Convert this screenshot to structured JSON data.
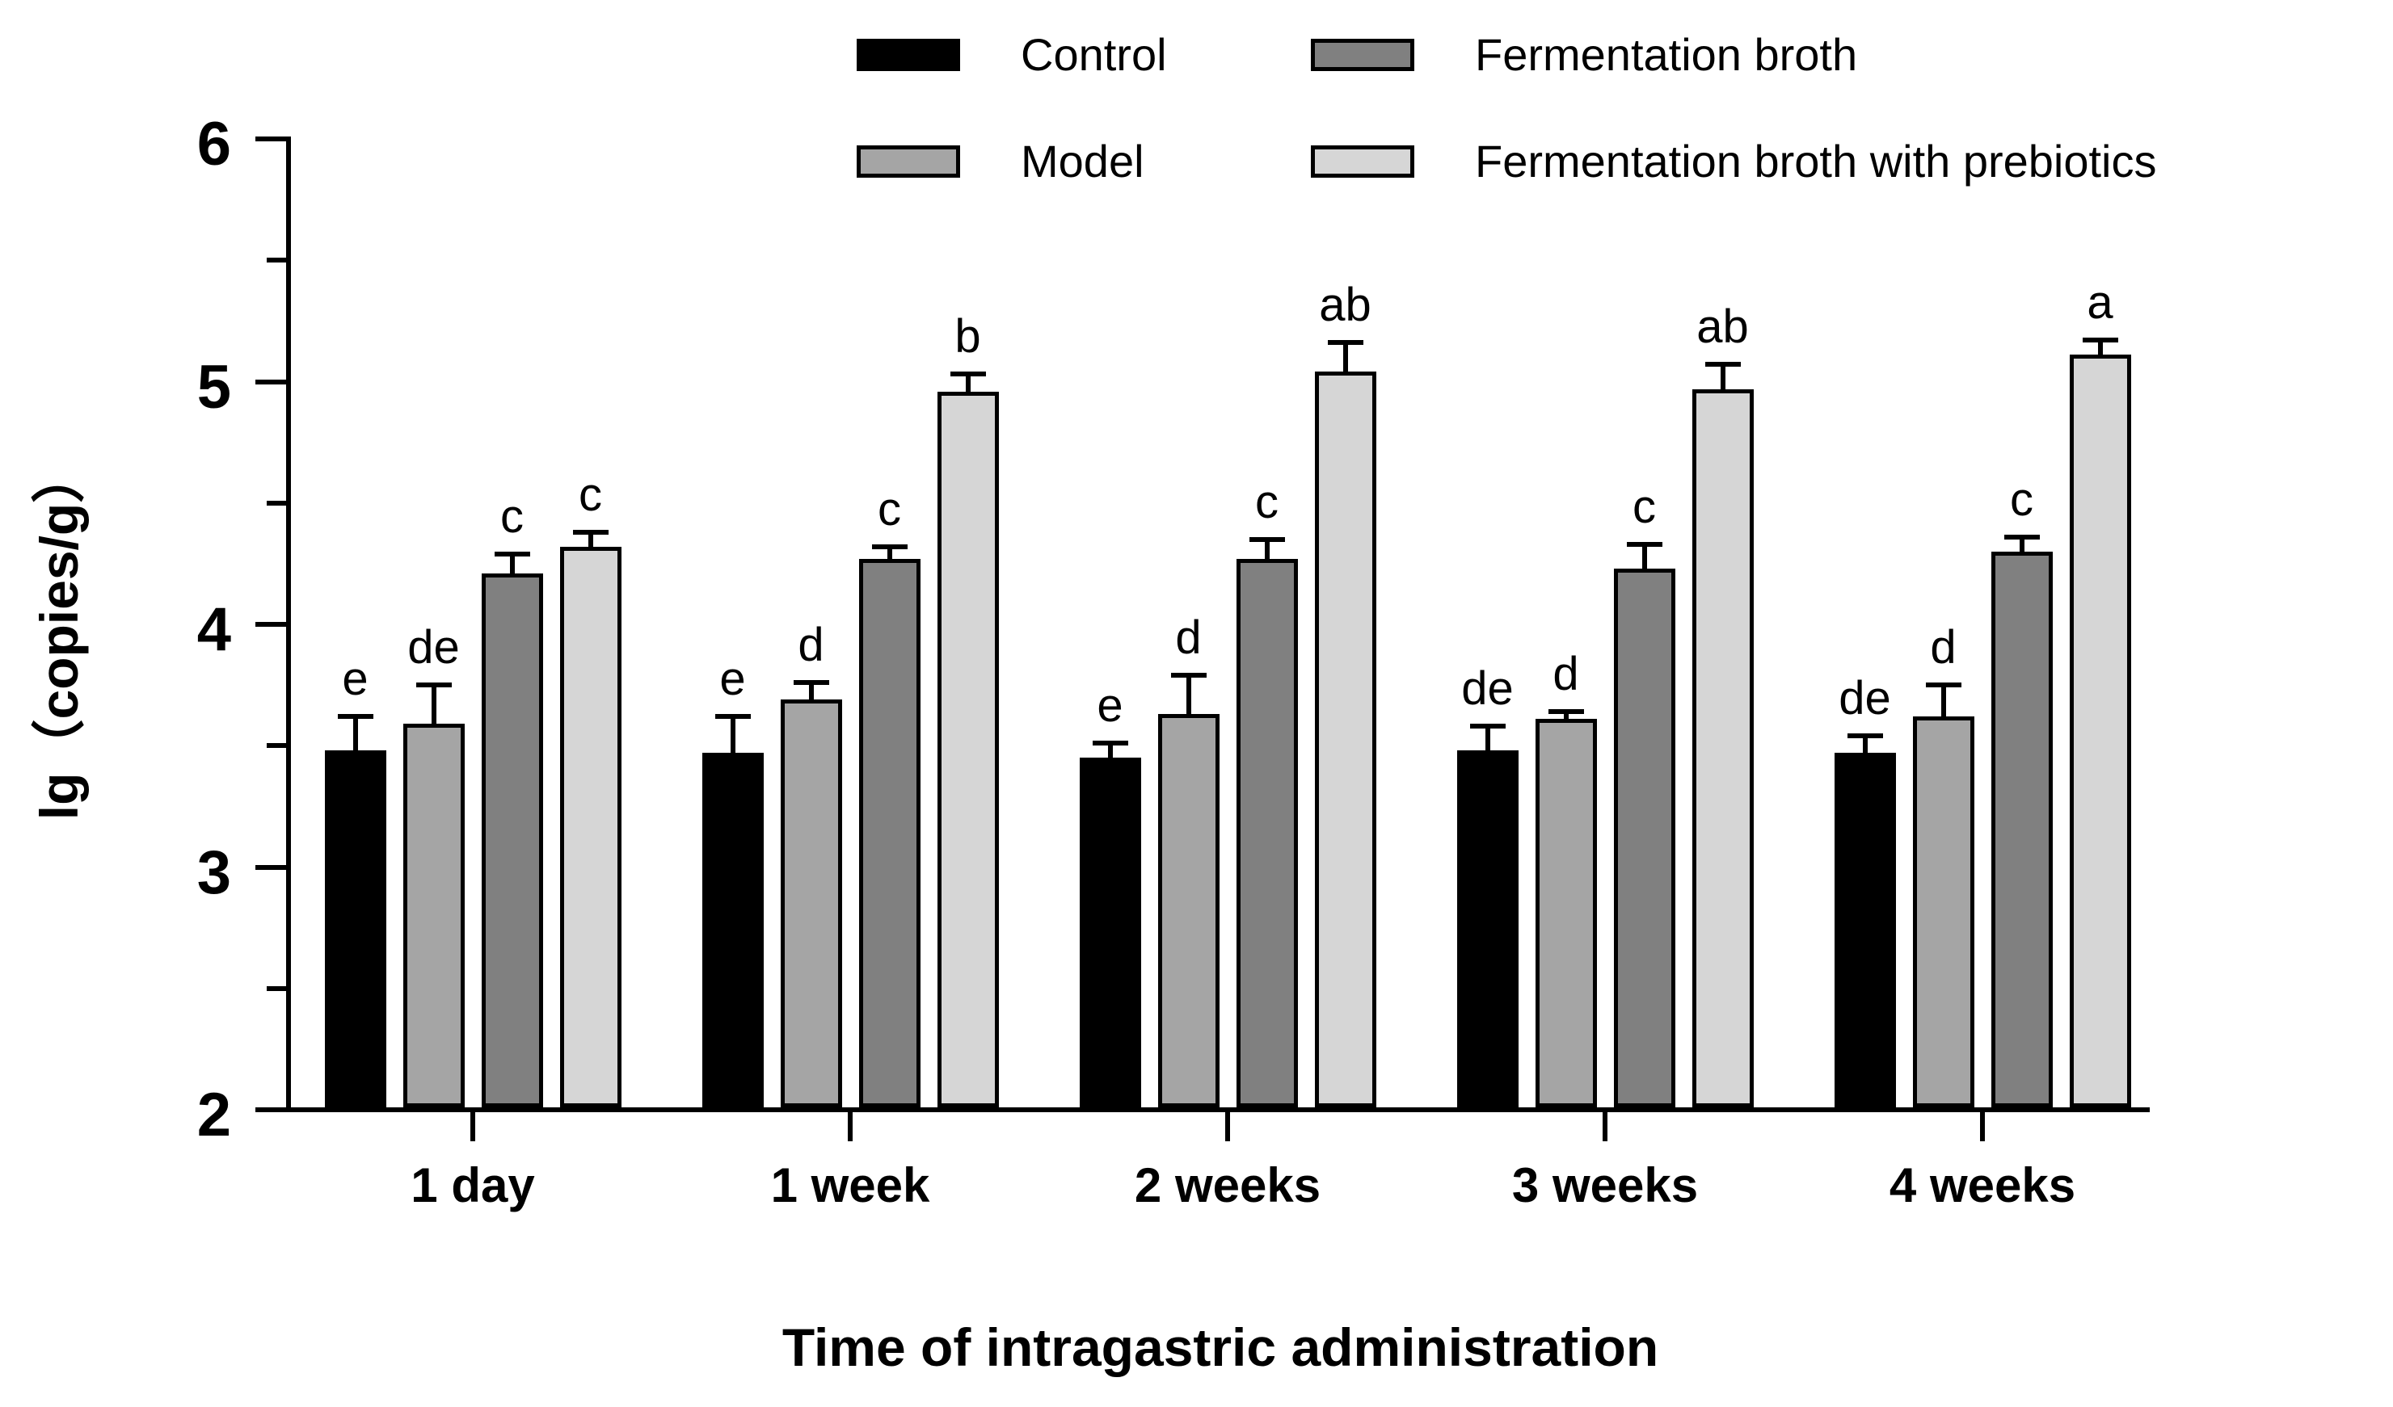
{
  "figure": {
    "ylabel": "lg（copies/g）",
    "xlabel": "Time of intragastric administration"
  },
  "chart_data": {
    "type": "bar",
    "title": "",
    "xlabel": "Time of intragastric administration",
    "ylabel": "lg（copies/g）",
    "ylim": [
      2,
      6
    ],
    "y_major_ticks": [
      2,
      3,
      4,
      5,
      6
    ],
    "y_minor_ticks": [
      2.5,
      3.5,
      4.5,
      5.5
    ],
    "grid": false,
    "legend_position": "top",
    "error_bars": "upper",
    "categories": [
      "1 day",
      "1 week",
      "2 weeks",
      "3 weeks",
      "4 weeks"
    ],
    "series": [
      {
        "name": "Control",
        "color": "#000000",
        "values": [
          3.47,
          3.46,
          3.44,
          3.47,
          3.46
        ],
        "errors": [
          0.13,
          0.14,
          0.05,
          0.09,
          0.06
        ],
        "letters": [
          "e",
          "e",
          "e",
          "de",
          "de"
        ]
      },
      {
        "name": "Model",
        "color": "#a5a5a5",
        "values": [
          3.58,
          3.68,
          3.62,
          3.6,
          3.61
        ],
        "errors": [
          0.15,
          0.06,
          0.15,
          0.02,
          0.12
        ],
        "letters": [
          "de",
          "d",
          "d",
          "d",
          "d"
        ]
      },
      {
        "name": "Fermentation broth",
        "color": "#808080",
        "values": [
          4.2,
          4.26,
          4.26,
          4.22,
          4.29
        ],
        "errors": [
          0.07,
          0.04,
          0.07,
          0.09,
          0.05
        ],
        "letters": [
          "c",
          "c",
          "c",
          "c",
          "c"
        ]
      },
      {
        "name": "Fermentation broth with prebiotics",
        "color": "#d6d6d6",
        "values": [
          4.31,
          4.95,
          5.03,
          4.96,
          5.1
        ],
        "errors": [
          0.05,
          0.06,
          0.11,
          0.09,
          0.05
        ],
        "letters": [
          "c",
          "b",
          "ab",
          "ab",
          "a"
        ]
      }
    ]
  }
}
